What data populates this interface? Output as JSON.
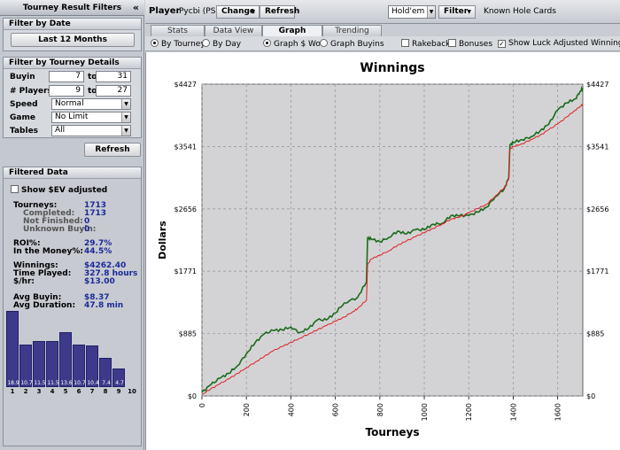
{
  "sidebar": {
    "title": "Tourney Result Filters",
    "collapse_glyph": "«",
    "filter_by_date": {
      "title": "Filter by Date",
      "button": "Last 12 Months"
    },
    "filter_by_details": {
      "title": "Filter by Tourney Details",
      "buyin": {
        "label": "Buyin",
        "min": "7",
        "to": "to",
        "max": "31"
      },
      "players": {
        "label": "# Players",
        "min": "9",
        "to": "to",
        "max": "27"
      },
      "speed": {
        "label": "Speed",
        "value": "Normal"
      },
      "game": {
        "label": "Game",
        "value": "No Limit"
      },
      "tables": {
        "label": "Tables",
        "value": "All"
      }
    },
    "refresh_button": "Refresh",
    "filtered_data": {
      "title": "Filtered Data",
      "show_ev_label": "Show $EV adjusted",
      "show_ev_checked": false,
      "stats": [
        {
          "label": "Tourneys:",
          "value": "1713",
          "sub": false
        },
        {
          "label": "Completed:",
          "value": "1713",
          "sub": true
        },
        {
          "label": "Not Finished:",
          "value": "0",
          "sub": true
        },
        {
          "label": "Unknown Buyin:",
          "value": "0",
          "sub": true
        },
        {
          "label": "ROI%:",
          "value": "29.7%",
          "sub": false
        },
        {
          "label": "In the Money%:",
          "value": "44.5%",
          "sub": false
        },
        {
          "label": "Winnings:",
          "value": "$4262.40",
          "sub": false
        },
        {
          "label": "Time Played:",
          "value": "327.8 hours",
          "sub": false
        },
        {
          "label": "$/hr:",
          "value": "$13.00",
          "sub": false
        },
        {
          "label": "Avg Buyin:",
          "value": "$8.37",
          "sub": false
        },
        {
          "label": "Avg Duration:",
          "value": "47.8 min",
          "sub": false
        }
      ],
      "finish_histogram": {
        "positions": [
          "1",
          "2",
          "3",
          "4",
          "5",
          "6",
          "7",
          "8",
          "9",
          "10"
        ],
        "values": [
          18.9,
          10.7,
          11.5,
          11.5,
          13.6,
          10.7,
          10.4,
          7.4,
          4.7,
          0
        ],
        "labels": [
          "18.9",
          "10.7",
          "11.5",
          "11.5",
          "13.6",
          "10.7",
          "10.4",
          "7.4",
          "4.7",
          ""
        ]
      }
    }
  },
  "toolbar": {
    "player_label": "Player",
    "player_name": "Pycbi (PS)",
    "change_button": "Change",
    "refresh_button": "Refresh",
    "game_select": "Hold'em",
    "filter_button": "Filter",
    "known_hole_cards": "Known Hole Cards"
  },
  "tabs": [
    {
      "label": "Stats",
      "active": false
    },
    {
      "label": "Data View",
      "active": false
    },
    {
      "label": "Graph",
      "active": true
    },
    {
      "label": "Trending",
      "active": false
    }
  ],
  "options": {
    "by_tourney": "By Tourney",
    "by_day": "By Day",
    "graph_won": "Graph $ Won",
    "graph_buyins": "Graph Buyins",
    "rakeback": "Rakeback",
    "bonuses": "Bonuses",
    "luck_adjusted": "Show Luck Adjusted Winnings",
    "by_tourney_on": true,
    "graph_won_on": true,
    "rakeback_checked": false,
    "bonuses_checked": false,
    "luck_adjusted_checked": true
  },
  "colors": {
    "winnings_line": "#1a6b1a",
    "luck_line": "#e02020",
    "plot_bg": "#d3d3d6",
    "grid": "#9a9aa0",
    "histogram_bar": "#3d3a8c"
  },
  "chart_data": {
    "type": "line",
    "title": "Winnings",
    "xlabel": "Tourneys",
    "ylabel": "Dollars",
    "xlim": [
      0,
      1713
    ],
    "ylim": [
      0,
      4427
    ],
    "x_ticks": [
      "0",
      "200",
      "400",
      "600",
      "800",
      "1000",
      "1200",
      "1400",
      "1600"
    ],
    "x_tick_values": [
      0,
      200,
      400,
      600,
      800,
      1000,
      1200,
      1400,
      1600
    ],
    "y_ticks": [
      "$0",
      "$885",
      "$1771",
      "$2656",
      "$3541",
      "$4427"
    ],
    "y_tick_values": [
      0,
      885,
      1771,
      2656,
      3541,
      4427
    ],
    "grid": true,
    "series": [
      {
        "color": "#1a6b1a",
        "x": [
          0,
          40,
          80,
          120,
          160,
          200,
          240,
          280,
          320,
          360,
          400,
          440,
          480,
          520,
          560,
          600,
          640,
          700,
          740,
          745,
          760,
          800,
          840,
          880,
          920,
          960,
          1000,
          1040,
          1080,
          1120,
          1160,
          1200,
          1240,
          1280,
          1320,
          1360,
          1380,
          1385,
          1400,
          1440,
          1480,
          1520,
          1560,
          1600,
          1640,
          1680,
          1700,
          1713
        ],
        "y": [
          50,
          160,
          250,
          320,
          430,
          600,
          760,
          880,
          930,
          940,
          980,
          900,
          960,
          1080,
          1080,
          1180,
          1320,
          1400,
          1620,
          2240,
          2230,
          2190,
          2250,
          2340,
          2300,
          2360,
          2360,
          2440,
          2450,
          2560,
          2560,
          2560,
          2610,
          2680,
          2830,
          2940,
          3100,
          3560,
          3600,
          3640,
          3680,
          3760,
          3860,
          4060,
          4160,
          4220,
          4320,
          4370
        ]
      },
      {
        "color": "#e02020",
        "x": [
          0,
          40,
          80,
          120,
          160,
          200,
          240,
          280,
          320,
          360,
          400,
          440,
          480,
          520,
          560,
          600,
          640,
          680,
          700,
          740,
          745,
          760,
          800,
          840,
          880,
          920,
          960,
          1000,
          1040,
          1080,
          1120,
          1160,
          1200,
          1240,
          1280,
          1320,
          1360,
          1380,
          1385,
          1400,
          1440,
          1480,
          1520,
          1560,
          1600,
          1640,
          1680,
          1700,
          1713
        ],
        "y": [
          20,
          100,
          170,
          240,
          320,
          400,
          480,
          560,
          640,
          700,
          760,
          820,
          880,
          940,
          1000,
          1060,
          1120,
          1200,
          1240,
          1360,
          1860,
          1940,
          2000,
          2060,
          2140,
          2200,
          2260,
          2320,
          2380,
          2440,
          2510,
          2540,
          2600,
          2660,
          2720,
          2840,
          2960,
          3080,
          3500,
          3540,
          3580,
          3640,
          3700,
          3780,
          3860,
          3960,
          4060,
          4110,
          4140
        ]
      }
    ]
  }
}
